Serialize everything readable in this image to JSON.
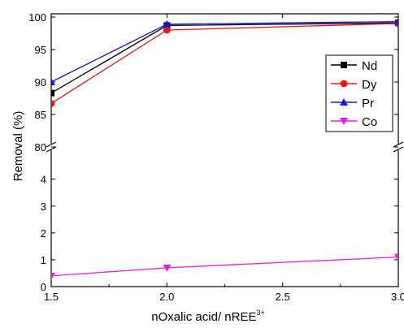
{
  "chart_data": {
    "type": "line",
    "x": [
      1.5,
      2.0,
      3.0
    ],
    "xlabel": "nOxalic acid/ nREE",
    "xlabel_sup": "3+",
    "ylabel": "Removal (%)",
    "xlim": [
      1.5,
      3.0
    ],
    "x_ticks": [
      "1.5",
      "2.0",
      "2.5",
      "3.0"
    ],
    "y_axis_broken": true,
    "lower_ylim": [
      0,
      5
    ],
    "upper_ylim": [
      80,
      100
    ],
    "lower_y_ticks": [
      "0",
      "1",
      "2",
      "3",
      "4"
    ],
    "upper_y_ticks": [
      "80",
      "85",
      "90",
      "95",
      "100"
    ],
    "legend_position": "right",
    "series": [
      {
        "name": "Nd",
        "values": [
          88.3,
          98.7,
          99.1
        ],
        "color": "#000000",
        "marker": "square"
      },
      {
        "name": "Dy",
        "values": [
          86.7,
          98.0,
          99.0
        ],
        "color": "#e8141b",
        "marker": "circle"
      },
      {
        "name": "Pr",
        "values": [
          90.0,
          98.9,
          99.3
        ],
        "color": "#1515e6",
        "marker": "triangle-up"
      },
      {
        "name": "Co",
        "values": [
          0.4,
          0.7,
          1.1
        ],
        "color": "#e51ee5",
        "marker": "triangle-down"
      }
    ]
  }
}
